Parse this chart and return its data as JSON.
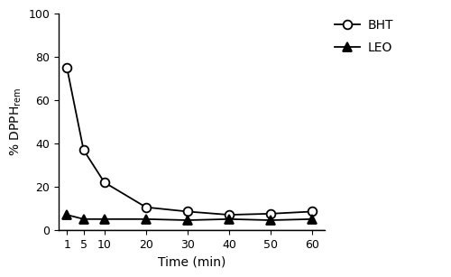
{
  "x": [
    1,
    5,
    10,
    20,
    30,
    40,
    50,
    60
  ],
  "bht_y": [
    75,
    37,
    22,
    10.5,
    8.5,
    7,
    7.5,
    8.5
  ],
  "leo_y": [
    7,
    5,
    5,
    5,
    4.5,
    5,
    4.5,
    5
  ],
  "xlabel": "Time (min)",
  "ylim": [
    0,
    100
  ],
  "xlim_left": -1,
  "xlim_right": 63,
  "yticks": [
    0,
    20,
    40,
    60,
    80,
    100
  ],
  "xticks": [
    1,
    5,
    10,
    20,
    30,
    40,
    50,
    60
  ],
  "line_color": "#000000",
  "bg_color": "#ffffff",
  "legend_bht": "BHT",
  "legend_leo": "LEO",
  "fontsize_label": 10,
  "fontsize_tick": 9,
  "fontsize_legend": 10,
  "linewidth": 1.3,
  "markersize": 7
}
